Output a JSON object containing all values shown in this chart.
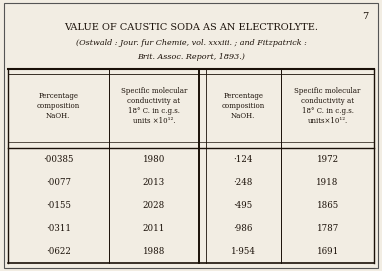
{
  "page_number": "7",
  "title": "VALUE OF CAUSTIC SODA AS AN ELECTROLYTE.",
  "subtitle_line1": "(Ostwald : Jour. fur Chemie, vol. xxxiii. ; and Fitzpatrick :",
  "subtitle_line2": "Brit. Assoc. Report, 1893.)",
  "col_headers": [
    "Percentage\ncomposition\nNaOH.",
    "Specific molecular\nconductivity at\n18° C. in c.g.s.\nunits ×10¹².",
    "Percentage\ncomposition\nNaOH.",
    "Specific molecular\nconductivity at\n18° C. in c.g.s.\nunits×10¹²."
  ],
  "col1": [
    "·00385",
    "·0077",
    "·0155",
    "·0311",
    "·0622"
  ],
  "col2": [
    "1980",
    "2013",
    "2028",
    "2011",
    "1988"
  ],
  "col3": [
    "·124",
    "·248",
    "·495",
    "·986",
    "1·954"
  ],
  "col4": [
    "1972",
    "1918",
    "1865",
    "1787",
    "1691"
  ],
  "bg_color": "#f2ede3",
  "text_color": "#1a1008",
  "line_color": "#1a1008",
  "border_color": "#555555"
}
